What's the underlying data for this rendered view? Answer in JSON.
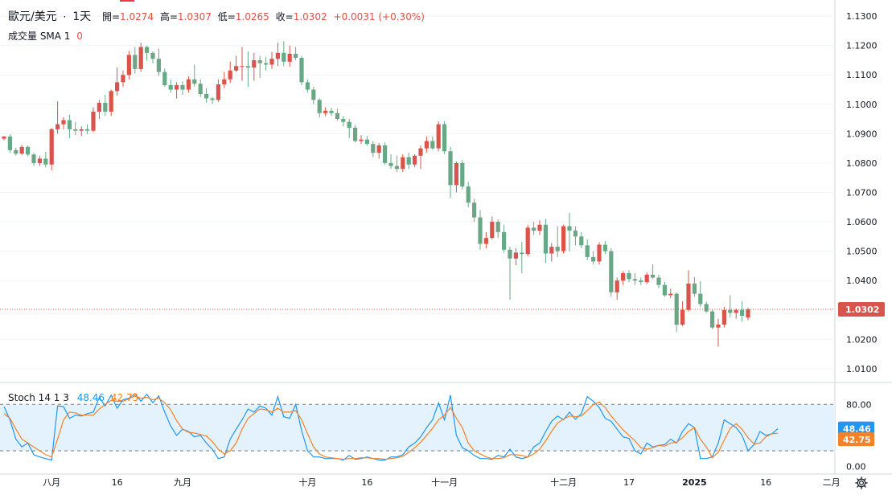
{
  "header": {
    "symbol": "歐元/美元",
    "dot": "·",
    "interval": "1天",
    "open_label": "開=",
    "open_value": "1.0274",
    "high_label": "高=",
    "high_value": "1.0307",
    "low_label": "低=",
    "low_value": "1.0265",
    "close_label": "收=",
    "close_value": "1.0302",
    "change": "+0.0031 (+0.30%)"
  },
  "volume_legend": {
    "label": "成交量 SMA 1",
    "value": "0"
  },
  "stoch_legend": {
    "label": "Stoch 14 1 3",
    "k_value": "48.46",
    "d_value": "42.75"
  },
  "colors": {
    "up": "#d9544d",
    "down": "#6aa787",
    "k_line": "#2196f3",
    "d_line": "#f5822a",
    "band_fill": "#e3f2fd",
    "grid": "#f0f3fa",
    "last_price_badge": "#d9544d",
    "k_badge": "#2196f3",
    "d_badge": "#f5822a"
  },
  "icons": {
    "settings": "gear-icon"
  },
  "chart_data": [
    {
      "type": "candlestick",
      "title": "歐元/美元 · 1天",
      "ylim": [
        1.0075,
        1.1355
      ],
      "y_ticks": [
        "1.1300",
        "1.1200",
        "1.1100",
        "1.1000",
        "1.0900",
        "1.0800",
        "1.0700",
        "1.0600",
        "1.0500",
        "1.0400",
        "1.0200",
        "1.0100"
      ],
      "last_price": "1.0302",
      "x_tick_labels": [
        "八月",
        "16",
        "九月",
        "十月",
        "16",
        "十一月",
        "十二月",
        "17",
        "2025",
        "16",
        "二月"
      ],
      "candles": [
        [
          1.0883,
          1.0892,
          1.0878,
          1.089
        ],
        [
          1.089,
          1.0898,
          1.0835,
          1.0844
        ],
        [
          1.0844,
          1.0852,
          1.0825,
          1.0832
        ],
        [
          1.0832,
          1.0862,
          1.0828,
          1.0855
        ],
        [
          1.0855,
          1.086,
          1.0823,
          1.0829
        ],
        [
          1.0829,
          1.0835,
          1.0792,
          1.08
        ],
        [
          1.08,
          1.0825,
          1.079,
          1.0815
        ],
        [
          1.0815,
          1.0838,
          1.0785,
          1.0795
        ],
        [
          1.0795,
          1.092,
          1.0775,
          1.0915
        ],
        [
          1.0915,
          1.101,
          1.09,
          1.0932
        ],
        [
          1.0932,
          1.0956,
          1.0915,
          1.0946
        ],
        [
          1.0946,
          1.0965,
          1.0885,
          1.0915
        ],
        [
          1.0915,
          1.094,
          1.0895,
          1.091
        ],
        [
          1.091,
          1.0925,
          1.0892,
          1.0915
        ],
        [
          1.0915,
          1.0932,
          1.0898,
          1.091
        ],
        [
          1.091,
          1.099,
          1.0905,
          1.0975
        ],
        [
          1.0975,
          1.1015,
          1.095,
          1.1005
        ],
        [
          1.1005,
          1.1032,
          1.096,
          1.0975
        ],
        [
          1.0975,
          1.105,
          1.096,
          1.1045
        ],
        [
          1.1045,
          1.1125,
          1.103,
          1.1075
        ],
        [
          1.1075,
          1.1115,
          1.106,
          1.11
        ],
        [
          1.11,
          1.1182,
          1.1085,
          1.1168
        ],
        [
          1.1168,
          1.1195,
          1.1105,
          1.112
        ],
        [
          1.112,
          1.121,
          1.111,
          1.1195
        ],
        [
          1.1195,
          1.12,
          1.1148,
          1.1175
        ],
        [
          1.1175,
          1.118,
          1.114,
          1.1155
        ],
        [
          1.1155,
          1.119,
          1.1098,
          1.111
        ],
        [
          1.111,
          1.1122,
          1.106,
          1.1065
        ],
        [
          1.1065,
          1.1085,
          1.104,
          1.105
        ],
        [
          1.105,
          1.1075,
          1.102,
          1.1065
        ],
        [
          1.1065,
          1.1078,
          1.1032,
          1.105
        ],
        [
          1.105,
          1.1095,
          1.104,
          1.1085
        ],
        [
          1.1085,
          1.1135,
          1.106,
          1.107
        ],
        [
          1.107,
          1.1085,
          1.1025,
          1.1035
        ],
        [
          1.1035,
          1.1055,
          1.1005,
          1.102
        ],
        [
          1.102,
          1.1025,
          1.1002,
          1.1015
        ],
        [
          1.1015,
          1.1085,
          1.1008,
          1.1068
        ],
        [
          1.1068,
          1.111,
          1.1055,
          1.1085
        ],
        [
          1.1085,
          1.1145,
          1.1072,
          1.1115
        ],
        [
          1.1115,
          1.1165,
          1.111,
          1.113
        ],
        [
          1.113,
          1.1195,
          1.108,
          1.113
        ],
        [
          1.113,
          1.118,
          1.106,
          1.1125
        ],
        [
          1.1125,
          1.1175,
          1.108,
          1.115
        ],
        [
          1.115,
          1.1165,
          1.109,
          1.114
        ],
        [
          1.114,
          1.116,
          1.1115,
          1.1135
        ],
        [
          1.1135,
          1.1178,
          1.112,
          1.1155
        ],
        [
          1.1155,
          1.121,
          1.113,
          1.1175
        ],
        [
          1.1175,
          1.1215,
          1.113,
          1.1145
        ],
        [
          1.1145,
          1.12,
          1.1128,
          1.1172
        ],
        [
          1.1172,
          1.1195,
          1.115,
          1.1158
        ],
        [
          1.1158,
          1.1165,
          1.1065,
          1.1075
        ],
        [
          1.1075,
          1.1085,
          1.104,
          1.105
        ],
        [
          1.105,
          1.106,
          1.1,
          1.1015
        ],
        [
          1.1015,
          1.102,
          1.0955,
          1.097
        ],
        [
          1.097,
          1.099,
          1.096,
          1.0978
        ],
        [
          1.0978,
          1.0988,
          1.096,
          1.097
        ],
        [
          1.097,
          1.0985,
          1.0945,
          1.095
        ],
        [
          1.095,
          1.096,
          1.0925,
          1.094
        ],
        [
          1.094,
          1.095,
          1.0885,
          1.092
        ],
        [
          1.092,
          1.093,
          1.087,
          1.0875
        ],
        [
          1.0875,
          1.0895,
          1.0865,
          1.088
        ],
        [
          1.088,
          1.0892,
          1.086,
          1.0865
        ],
        [
          1.0865,
          1.0875,
          1.082,
          1.0835
        ],
        [
          1.0835,
          1.0868,
          1.0815,
          1.086
        ],
        [
          1.086,
          1.087,
          1.0795,
          1.08
        ],
        [
          1.08,
          1.083,
          1.078,
          1.079
        ],
        [
          1.079,
          1.0825,
          1.077,
          1.078
        ],
        [
          1.078,
          1.083,
          1.077,
          1.082
        ],
        [
          1.082,
          1.0835,
          1.078,
          1.0795
        ],
        [
          1.0795,
          1.083,
          1.0785,
          1.0825
        ],
        [
          1.0825,
          1.086,
          1.078,
          1.085
        ],
        [
          1.085,
          1.089,
          1.0835,
          1.0875
        ],
        [
          1.0875,
          1.089,
          1.0845,
          1.085
        ],
        [
          1.085,
          1.0942,
          1.084,
          1.0932
        ],
        [
          1.0932,
          1.0942,
          1.083,
          1.084
        ],
        [
          1.084,
          1.0855,
          1.068,
          1.0725
        ],
        [
          1.0725,
          1.0805,
          1.07,
          1.08
        ],
        [
          1.08,
          1.081,
          1.071,
          1.072
        ],
        [
          1.072,
          1.0735,
          1.065,
          1.0665
        ],
        [
          1.0665,
          1.0678,
          1.06,
          1.0615
        ],
        [
          1.0615,
          1.064,
          1.0505,
          1.0525
        ],
        [
          1.0525,
          1.0565,
          1.051,
          1.0545
        ],
        [
          1.0545,
          1.0618,
          1.054,
          1.06
        ],
        [
          1.06,
          1.0608,
          1.0545,
          1.0565
        ],
        [
          1.0565,
          1.059,
          1.0495,
          1.0505
        ],
        [
          1.0505,
          1.0515,
          1.0335,
          1.0475
        ],
        [
          1.0475,
          1.051,
          1.0452,
          1.0495
        ],
        [
          1.0495,
          1.0532,
          1.0425,
          1.049
        ],
        [
          1.049,
          1.059,
          1.0482,
          1.058
        ],
        [
          1.058,
          1.06,
          1.0555,
          1.057
        ],
        [
          1.057,
          1.0605,
          1.0555,
          1.059
        ],
        [
          1.059,
          1.061,
          1.046,
          1.0492
        ],
        [
          1.0492,
          1.0528,
          1.0465,
          1.0515
        ],
        [
          1.0515,
          1.0585,
          1.048,
          1.05
        ],
        [
          1.05,
          1.059,
          1.0492,
          1.0585
        ],
        [
          1.0585,
          1.063,
          1.05,
          1.057
        ],
        [
          1.057,
          1.0585,
          1.052,
          1.055
        ],
        [
          1.055,
          1.0565,
          1.051,
          1.052
        ],
        [
          1.052,
          1.054,
          1.047,
          1.048
        ],
        [
          1.048,
          1.05,
          1.0455,
          1.0465
        ],
        [
          1.0465,
          1.053,
          1.0455,
          1.0522
        ],
        [
          1.0522,
          1.0535,
          1.049,
          1.05
        ],
        [
          1.05,
          1.051,
          1.0345,
          1.036
        ],
        [
          1.036,
          1.041,
          1.0335,
          1.04
        ],
        [
          1.04,
          1.0432,
          1.0385,
          1.0425
        ],
        [
          1.0425,
          1.0435,
          1.0395,
          1.0405
        ],
        [
          1.0405,
          1.0425,
          1.0385,
          1.04
        ],
        [
          1.04,
          1.041,
          1.0385,
          1.0395
        ],
        [
          1.0395,
          1.0428,
          1.0388,
          1.042
        ],
        [
          1.042,
          1.0455,
          1.0405,
          1.041
        ],
        [
          1.041,
          1.042,
          1.0375,
          1.0385
        ],
        [
          1.0385,
          1.0395,
          1.0345,
          1.035
        ],
        [
          1.035,
          1.0372,
          1.034,
          1.0355
        ],
        [
          1.0355,
          1.036,
          1.0225,
          1.025
        ],
        [
          1.025,
          1.033,
          1.0245,
          1.03
        ],
        [
          1.03,
          1.0435,
          1.0295,
          1.039
        ],
        [
          1.039,
          1.0412,
          1.0345,
          1.0355
        ],
        [
          1.0355,
          1.0398,
          1.031,
          1.032
        ],
        [
          1.032,
          1.0328,
          1.029,
          1.0295
        ],
        [
          1.0295,
          1.03,
          1.0235,
          1.024
        ],
        [
          1.024,
          1.027,
          1.0175,
          1.025
        ],
        [
          1.025,
          1.031,
          1.024,
          1.03
        ],
        [
          1.03,
          1.035,
          1.0275,
          1.029
        ],
        [
          1.029,
          1.0305,
          1.027,
          1.03
        ],
        [
          1.03,
          1.033,
          1.026,
          1.028
        ],
        [
          1.0274,
          1.0307,
          1.0265,
          1.0302
        ]
      ]
    },
    {
      "type": "line",
      "title": "Stoch 14 1 3",
      "ylim": [
        -8,
        100
      ],
      "y_ticks": [
        "80.00",
        "0.00"
      ],
      "band": [
        20,
        80
      ],
      "series": [
        {
          "name": "48.46",
          "values": [
            77,
            60,
            35,
            25,
            30,
            15,
            12,
            10,
            8,
            78,
            77,
            62,
            66,
            65,
            68,
            70,
            89,
            78,
            92,
            75,
            86,
            88,
            94,
            84,
            93,
            82,
            91,
            70,
            52,
            40,
            48,
            45,
            38,
            40,
            30,
            22,
            10,
            12,
            35,
            48,
            60,
            74,
            70,
            78,
            75,
            66,
            90,
            64,
            62,
            80,
            46,
            20,
            12,
            12,
            10,
            10,
            10,
            8,
            14,
            9,
            10,
            12,
            10,
            8,
            8,
            12,
            12,
            15,
            25,
            30,
            38,
            50,
            60,
            82,
            60,
            92,
            40,
            24,
            20,
            14,
            10,
            10,
            9,
            14,
            12,
            22,
            12,
            10,
            12,
            25,
            30,
            45,
            58,
            65,
            60,
            70,
            61,
            68,
            90,
            84,
            76,
            62,
            58,
            48,
            38,
            36,
            20,
            16,
            30,
            25,
            27,
            28,
            35,
            30,
            45,
            55,
            50,
            10,
            10,
            12,
            30,
            60,
            55,
            50,
            40,
            20,
            28,
            45,
            40,
            42,
            48.46
          ]
        },
        {
          "name": "42.75",
          "values": [
            68,
            62,
            48,
            35,
            30,
            25,
            20,
            15,
            12,
            35,
            60,
            70,
            69,
            66,
            66,
            66,
            74,
            80,
            85,
            84,
            84,
            87,
            91,
            88,
            89,
            86,
            88,
            82,
            73,
            59,
            48,
            44,
            43,
            41,
            39,
            32,
            22,
            16,
            20,
            30,
            48,
            62,
            68,
            74,
            73,
            70,
            75,
            70,
            70,
            72,
            60,
            42,
            25,
            16,
            12,
            11,
            10,
            9,
            10,
            10,
            11,
            11,
            10,
            10,
            9,
            10,
            11,
            13,
            18,
            24,
            31,
            40,
            49,
            60,
            66,
            76,
            62,
            50,
            30,
            20,
            16,
            12,
            10,
            10,
            11,
            15,
            15,
            14,
            12,
            16,
            22,
            33,
            45,
            56,
            61,
            65,
            64,
            65,
            72,
            80,
            83,
            76,
            65,
            56,
            47,
            40,
            33,
            24,
            22,
            24,
            27,
            26,
            30,
            31,
            37,
            45,
            50,
            35,
            25,
            11,
            18,
            34,
            49,
            55,
            48,
            37,
            29,
            30,
            38,
            42,
            42.75
          ]
        }
      ]
    }
  ]
}
